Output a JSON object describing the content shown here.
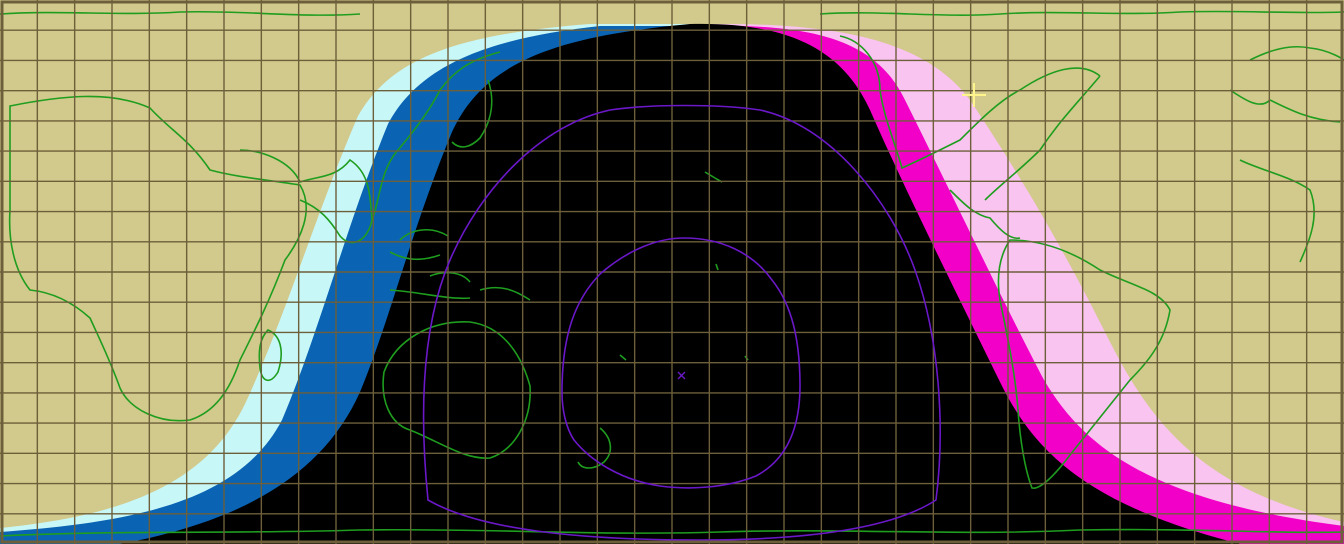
{
  "map": {
    "kind": "world-daylight-night-terminator",
    "colors": {
      "day_land": "#d2c98c",
      "night": "#000000",
      "dawn_civil": "#0a63b3",
      "dawn_outer": "#c8f7f7",
      "dusk_civil": "#f200c8",
      "dusk_outer": "#f9c4ef",
      "grid": "#6c5f3a",
      "coastline": "#1e9d1e",
      "visibility_contour": "#6a18c8",
      "marker": "#fff58a"
    },
    "grid": {
      "enabled": true,
      "interval_degrees": 10
    },
    "markers": [
      {
        "name": "observer-location-marker",
        "icon": "plus-icon"
      },
      {
        "name": "subsolar-point-marker",
        "icon": "x-icon"
      }
    ]
  }
}
